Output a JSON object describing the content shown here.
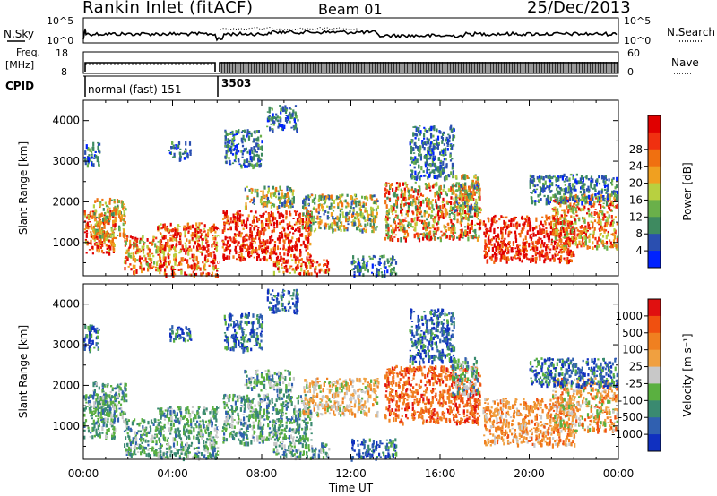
{
  "header": {
    "title": "Rankin Inlet (fitACF)",
    "beam": "Beam 01",
    "date": "25/Dec/2013"
  },
  "status_panel": {
    "nsky_label": "N.Sky",
    "nsky_ticks": [
      "10^5",
      "10^0"
    ],
    "nsearch_label": "N.Search",
    "nsearch_ticks": [
      "10^5",
      "10^0"
    ],
    "freq_label_1": "Freq.",
    "freq_label_2": "[MHz]",
    "freq_ticks": [
      "18",
      "8"
    ],
    "nave_label": "Nave",
    "nave_ticks": [
      "60",
      "0"
    ],
    "cpid_label": "CPID",
    "mode1": "normal (fast) 151",
    "mode2": "3503"
  },
  "chart_data": [
    {
      "type": "heatmap",
      "name": "power",
      "ylabel": "Slant Range [km]",
      "xlabel": "Time UT",
      "yticks": [
        "1000",
        "2000",
        "3000",
        "4000"
      ],
      "ylim": [
        180,
        4500
      ],
      "xlim_hours": [
        0,
        24
      ],
      "xticks": [
        "00:00",
        "04:00",
        "08:00",
        "12:00",
        "16:00",
        "20:00",
        "00:00"
      ],
      "colorbar_label": "Power [dB]",
      "colorbar_ticks": [
        "4",
        "8",
        "12",
        "16",
        "20",
        "24",
        "28"
      ],
      "colorbar_colors": [
        "#0022ff",
        "#2a4fb0",
        "#3e8a60",
        "#6ab04a",
        "#b8d040",
        "#f0a020",
        "#f07010",
        "#f03010",
        "#e00000"
      ]
    },
    {
      "type": "heatmap",
      "name": "velocity",
      "ylabel": "Slant Range [km]",
      "xlabel": "Time UT",
      "yticks": [
        "1000",
        "2000",
        "3000",
        "4000"
      ],
      "ylim": [
        180,
        4500
      ],
      "xlim_hours": [
        0,
        24
      ],
      "xticks": [
        "00:00",
        "04:00",
        "08:00",
        "12:00",
        "16:00",
        "20:00",
        "00:00"
      ],
      "colorbar_label": "Velocity [m s⁻¹]",
      "colorbar_ticks": [
        "1000",
        "500",
        "100",
        "25",
        "-25",
        "-100",
        "-500",
        "-1000"
      ],
      "colorbar_colors": [
        "#1030c0",
        "#3060b0",
        "#3a8a70",
        "#5ab040",
        "#c8c8c8",
        "#f0a040",
        "#f08020",
        "#f05010",
        "#e01010"
      ]
    }
  ]
}
